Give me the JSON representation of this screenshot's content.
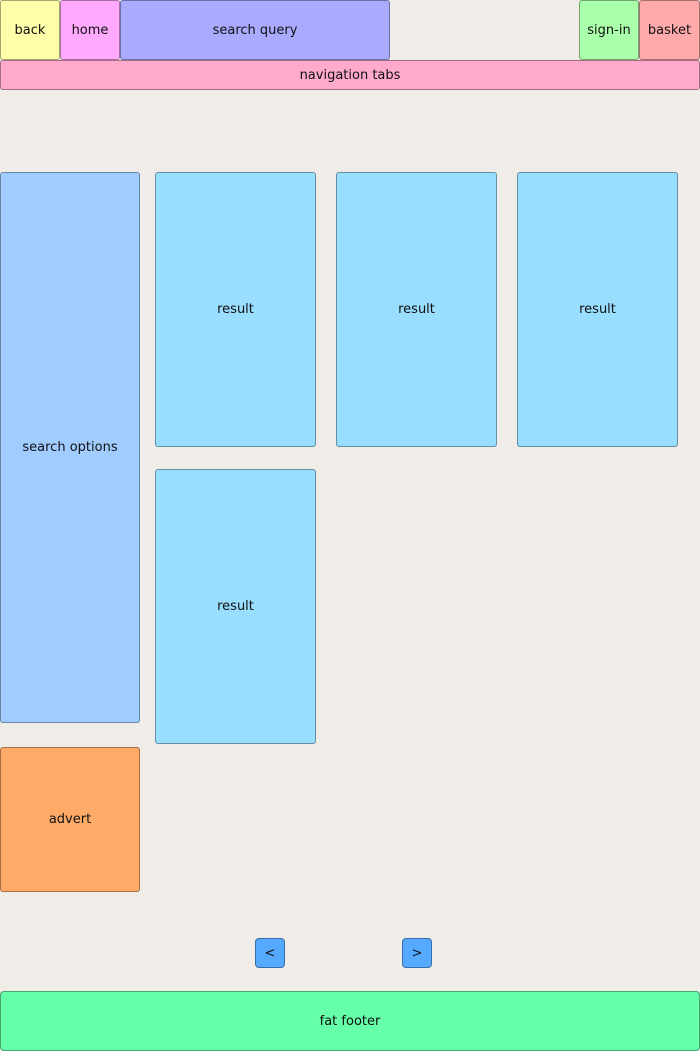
{
  "header": {
    "back_label": "back",
    "home_label": "home",
    "search_label": "search query",
    "signin_label": "sign-in",
    "basket_label": "basket"
  },
  "nav": {
    "tabs_label": "navigation tabs"
  },
  "sidebar": {
    "search_options_label": "search options",
    "advert_label": "advert"
  },
  "results": [
    {
      "label": "result"
    },
    {
      "label": "result"
    },
    {
      "label": "result"
    },
    {
      "label": "result"
    }
  ],
  "pagination": {
    "prev_label": "<",
    "next_label": ">"
  },
  "footer": {
    "label": "fat footer"
  },
  "colors": {
    "background": "#f0ece7",
    "back": "#ffffaa",
    "home": "#ffaaff",
    "search": "#aaaaff",
    "signin": "#aaffaa",
    "basket": "#ffaaaa",
    "navigation_tabs": "#ffaacc",
    "search_options": "#a0ccff",
    "advert": "#ffaa66",
    "result": "#99ddff",
    "pager": "#55aaff",
    "footer": "#66ffaa"
  }
}
